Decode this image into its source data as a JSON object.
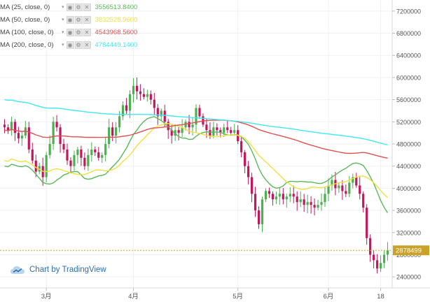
{
  "legend": [
    {
      "name": "MA (25, close, 0)",
      "value": "3556513.8400",
      "color": "#5ab85a"
    },
    {
      "name": "MA (50, close, 0)",
      "value": "3832528.9600",
      "color": "#f0e040"
    },
    {
      "name": "MA (100, close, 0)",
      "value": "4543968.5600",
      "color": "#e05050"
    },
    {
      "name": "MA (200, close, 0)",
      "value": "4784449.1400",
      "color": "#40e8f0"
    }
  ],
  "watermark": "Chart by TradingView",
  "price_axis": [
    "7200000",
    "6800000",
    "6400000",
    "6000000",
    "5600000",
    "5200000",
    "4800000",
    "4400000",
    "4000000",
    "3600000",
    "3200000",
    "2800000",
    "2400000"
  ],
  "time_axis": [
    "3月",
    "4月",
    "5月",
    "6月",
    "18"
  ],
  "last_price_label": "2878499",
  "colors": {
    "up": "#4caf50",
    "down": "#c2185b",
    "last_price": "#c9a227",
    "ma25": "#5ab85a",
    "ma50": "#f0e040",
    "ma100": "#e05050",
    "ma200": "#40e8f0"
  },
  "chart_data": {
    "type": "candlestick",
    "ylim": [
      2200000,
      7400000
    ],
    "x_ticks": [
      {
        "label": "3月",
        "index": 12
      },
      {
        "label": "4月",
        "index": 37
      },
      {
        "label": "5月",
        "index": 67
      },
      {
        "label": "6月",
        "index": 93
      },
      {
        "label": "18",
        "index": 108
      }
    ],
    "close": [
      5100000,
      5050000,
      5200000,
      5000000,
      4900000,
      4950000,
      5100000,
      4700000,
      4500000,
      4300000,
      4400000,
      4200000,
      4600000,
      4800000,
      5200000,
      5100000,
      4800000,
      4700000,
      4500000,
      4400000,
      4600000,
      4700000,
      4550000,
      4400000,
      4600000,
      4700000,
      4650000,
      4550000,
      4600000,
      4800000,
      5100000,
      4950000,
      5100000,
      5300000,
      5500000,
      5400000,
      5700000,
      5850000,
      5750000,
      5700000,
      5650000,
      5700000,
      5600000,
      5450000,
      5300000,
      5400000,
      5200000,
      5050000,
      4950000,
      5050000,
      5000000,
      5100000,
      5200000,
      5100000,
      5150000,
      5450000,
      5300000,
      5150000,
      5050000,
      4950000,
      5100000,
      5050000,
      5000000,
      5100000,
      5050000,
      5000000,
      5050000,
      4850000,
      4650000,
      4400000,
      4200000,
      3900000,
      3600000,
      3350000,
      3800000,
      3950000,
      3900000,
      3800000,
      3850000,
      3900000,
      3800000,
      3850000,
      3900000,
      3850000,
      3750000,
      3800000,
      3700000,
      3750000,
      3700000,
      3650000,
      3700000,
      3750000,
      3900000,
      4050000,
      4150000,
      4000000,
      4050000,
      3950000,
      3900000,
      4100000,
      4200000,
      4050000,
      3900000,
      3650000,
      3100000,
      2800000,
      2700000,
      2550000,
      2650000,
      2800000,
      2880000
    ],
    "series": [
      {
        "name": "MA (25, close, 0)",
        "y_start": 4400000,
        "y_end": 3556513.84
      },
      {
        "name": "MA (50, close, 0)",
        "y_start": 4500000,
        "y_end": 3832528.96
      },
      {
        "name": "MA (100, close, 0)",
        "y_start": 5050000,
        "y_end": 4543968.56
      },
      {
        "name": "MA (200, close, 0)",
        "y_start": 5600000,
        "y_end": 4784449.14
      }
    ],
    "last_price": 2878499
  }
}
